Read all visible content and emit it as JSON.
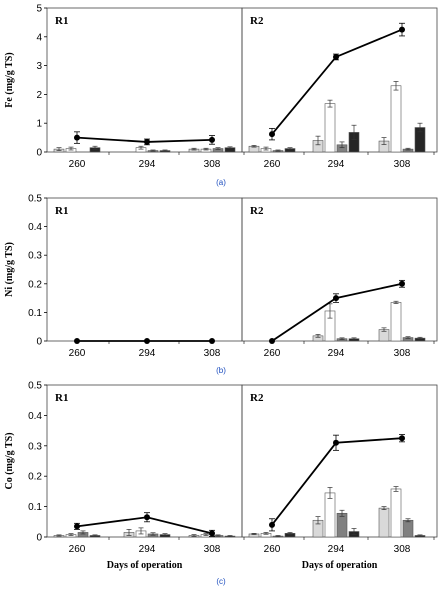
{
  "chart_data": [
    {
      "type": "bar",
      "caption": "(a)",
      "ylabel": "Fe (mg/g TS)",
      "xlabel": "",
      "ylim": [
        0,
        5
      ],
      "yticks": [
        "0",
        "1",
        "2",
        "3",
        "4",
        "5"
      ],
      "categories": [
        "260",
        "294",
        "308"
      ],
      "panels": [
        {
          "title": "R1",
          "bars": [
            {
              "values": [
                0.1,
                0.0,
                0.1
              ],
              "err": [
                0.05,
                0.0,
                0.03
              ]
            },
            {
              "values": [
                0.12,
                0.15,
                0.1
              ],
              "err": [
                0.05,
                0.05,
                0.03
              ]
            },
            {
              "values": [
                0.0,
                0.05,
                0.12
              ],
              "err": [
                0.0,
                0.02,
                0.03
              ]
            },
            {
              "values": [
                0.15,
                0.05,
                0.15
              ],
              "err": [
                0.05,
                0.02,
                0.03
              ]
            }
          ],
          "line": {
            "values": [
              0.5,
              0.35,
              0.42
            ],
            "err": [
              0.2,
              0.1,
              0.15
            ]
          }
        },
        {
          "title": "R2",
          "bars": [
            {
              "values": [
                0.2,
                0.4,
                0.38
              ],
              "err": [
                0.03,
                0.15,
                0.12
              ]
            },
            {
              "values": [
                0.12,
                1.68,
                2.3
              ],
              "err": [
                0.05,
                0.12,
                0.15
              ]
            },
            {
              "values": [
                0.05,
                0.25,
                0.1
              ],
              "err": [
                0.02,
                0.1,
                0.03
              ]
            },
            {
              "values": [
                0.12,
                0.68,
                0.85
              ],
              "err": [
                0.03,
                0.25,
                0.15
              ]
            }
          ],
          "line": {
            "values": [
              0.62,
              3.3,
              4.25
            ],
            "err": [
              0.2,
              0.1,
              0.22
            ]
          }
        }
      ]
    },
    {
      "type": "bar",
      "caption": "(b)",
      "ylabel": "Ni (mg/g TS)",
      "xlabel": "",
      "ylim": [
        0,
        0.5
      ],
      "yticks": [
        "0",
        "0.1",
        "0.2",
        "0.3",
        "0.4",
        "0.5"
      ],
      "categories": [
        "260",
        "294",
        "308"
      ],
      "panels": [
        {
          "title": "R1",
          "bars": [
            {
              "values": [
                0,
                0,
                0
              ],
              "err": [
                0,
                0,
                0
              ]
            },
            {
              "values": [
                0,
                0,
                0
              ],
              "err": [
                0,
                0,
                0
              ]
            },
            {
              "values": [
                0,
                0,
                0
              ],
              "err": [
                0,
                0,
                0
              ]
            },
            {
              "values": [
                0,
                0,
                0
              ],
              "err": [
                0,
                0,
                0
              ]
            }
          ],
          "line": {
            "values": [
              0,
              0,
              0
            ],
            "err": [
              0,
              0,
              0
            ]
          }
        },
        {
          "title": "R2",
          "bars": [
            {
              "values": [
                0,
                0.018,
                0.04
              ],
              "err": [
                0,
                0.005,
                0.006
              ]
            },
            {
              "values": [
                0,
                0.105,
                0.135
              ],
              "err": [
                0,
                0.025,
                0.004
              ]
            },
            {
              "values": [
                0,
                0.008,
                0.012
              ],
              "err": [
                0,
                0.003,
                0.003
              ]
            },
            {
              "values": [
                0,
                0.008,
                0.01
              ],
              "err": [
                0,
                0.003,
                0.003
              ]
            }
          ],
          "line": {
            "values": [
              0,
              0.15,
              0.2
            ],
            "err": [
              0,
              0.015,
              0.012
            ]
          }
        }
      ]
    },
    {
      "type": "bar",
      "caption": "(c)",
      "ylabel": "Co (mg/g TS)",
      "xlabel": "Days of operation",
      "ylim": [
        0,
        0.5
      ],
      "yticks": [
        "0",
        "0.1",
        "0.2",
        "0.3",
        "0.4",
        "0.5"
      ],
      "categories": [
        "260",
        "294",
        "308"
      ],
      "panels": [
        {
          "title": "R1",
          "bars": [
            {
              "values": [
                0.005,
                0.015,
                0.005
              ],
              "err": [
                0.002,
                0.01,
                0.003
              ]
            },
            {
              "values": [
                0.008,
                0.02,
                0.008
              ],
              "err": [
                0.003,
                0.01,
                0.003
              ]
            },
            {
              "values": [
                0.015,
                0.01,
                0.005
              ],
              "err": [
                0.005,
                0.004,
                0.002
              ]
            },
            {
              "values": [
                0.005,
                0.008,
                0.003
              ],
              "err": [
                0.002,
                0.003,
                0.002
              ]
            }
          ],
          "line": {
            "values": [
              0.035,
              0.065,
              0.012
            ],
            "err": [
              0.01,
              0.015,
              0.01
            ]
          }
        },
        {
          "title": "R2",
          "bars": [
            {
              "values": [
                0.01,
                0.055,
                0.095
              ],
              "err": [
                0.002,
                0.012,
                0.005
              ]
            },
            {
              "values": [
                0.012,
                0.145,
                0.158
              ],
              "err": [
                0.003,
                0.018,
                0.008
              ]
            },
            {
              "values": [
                0.003,
                0.078,
                0.055
              ],
              "err": [
                0.002,
                0.01,
                0.005
              ]
            },
            {
              "values": [
                0.012,
                0.018,
                0.005
              ],
              "err": [
                0.003,
                0.01,
                0.002
              ]
            }
          ],
          "line": {
            "values": [
              0.04,
              0.31,
              0.325
            ],
            "err": [
              0.02,
              0.025,
              0.012
            ]
          }
        }
      ]
    }
  ],
  "colors": {
    "bar1": "#d9d9d9",
    "bar2": "#ffffff",
    "bar3": "#808080",
    "bar4": "#262626",
    "line": "#000000",
    "caption": "#1f4fbf"
  }
}
